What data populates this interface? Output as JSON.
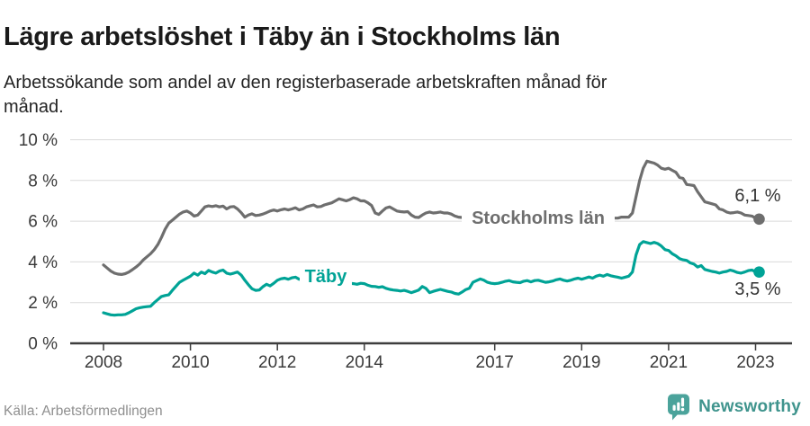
{
  "header": {
    "title": "Lägre arbetslöshet i Täby än i Stockholms län",
    "subtitle": "Arbetssökande som andel av den registerbaserade arbetskraften månad för månad."
  },
  "footer": {
    "source": "Källa: Arbetsförmedlingen",
    "brand": "Newsworthy",
    "brand_text_color": "#3F948D",
    "brand_icon": "newsworthy-speech-bubble-bar-chart-icon",
    "brand_icon_color": "#4BA39B"
  },
  "chart_data": {
    "type": "line",
    "title": "Lägre arbetslöshet i Täby än i Stockholms län",
    "subtitle": "Arbetssökande som andel av den registerbaserade arbetskraften månad för månad.",
    "x_unit": "decimal year, monthly points",
    "x_start": 2008.0,
    "points_per_year": 12,
    "xlim": [
      2007.9,
      2023.9
    ],
    "ylim": [
      0,
      10
    ],
    "grid": "horizontal",
    "legend_position": "inline-on-line",
    "axis_text_color": "#3a3a3a",
    "gridline_color": "#dadada",
    "axis_line_color": "#3d3d3d",
    "y_ticks": [
      {
        "value": 0,
        "label": "0 %"
      },
      {
        "value": 2,
        "label": "2 %"
      },
      {
        "value": 4,
        "label": "4 %"
      },
      {
        "value": 6,
        "label": "6 %"
      },
      {
        "value": 8,
        "label": "8 %"
      },
      {
        "value": 10,
        "label": "10 %"
      }
    ],
    "x_ticks": [
      {
        "value": 2008,
        "label": "2008"
      },
      {
        "value": 2010,
        "label": "2010"
      },
      {
        "value": 2012,
        "label": "2012"
      },
      {
        "value": 2014,
        "label": "2014"
      },
      {
        "value": 2017,
        "label": "2017"
      },
      {
        "value": 2019,
        "label": "2019"
      },
      {
        "value": 2021,
        "label": "2021"
      },
      {
        "value": 2023,
        "label": "2023"
      }
    ],
    "series": [
      {
        "name": "Stockholms län",
        "color": "#6E6E6E",
        "end_label": "6,1 %",
        "end_value": 6.1,
        "values": [
          3.85,
          3.7,
          3.55,
          3.45,
          3.4,
          3.38,
          3.42,
          3.5,
          3.62,
          3.75,
          3.9,
          4.1,
          4.25,
          4.4,
          4.6,
          4.85,
          5.2,
          5.6,
          5.9,
          6.05,
          6.2,
          6.35,
          6.45,
          6.5,
          6.4,
          6.25,
          6.3,
          6.5,
          6.7,
          6.75,
          6.72,
          6.76,
          6.7,
          6.74,
          6.6,
          6.7,
          6.72,
          6.6,
          6.42,
          6.2,
          6.3,
          6.36,
          6.28,
          6.3,
          6.35,
          6.42,
          6.5,
          6.55,
          6.5,
          6.56,
          6.6,
          6.55,
          6.6,
          6.66,
          6.55,
          6.6,
          6.7,
          6.75,
          6.8,
          6.7,
          6.72,
          6.8,
          6.85,
          6.9,
          7.0,
          7.1,
          7.05,
          7.0,
          7.06,
          7.15,
          7.1,
          7.0,
          7.0,
          6.9,
          6.77,
          6.4,
          6.33,
          6.5,
          6.65,
          6.7,
          6.6,
          6.5,
          6.47,
          6.45,
          6.47,
          6.3,
          6.2,
          6.18,
          6.3,
          6.4,
          6.45,
          6.4,
          6.42,
          6.45,
          6.4,
          6.4,
          6.35,
          6.25,
          6.2,
          6.18,
          6.1,
          6.1,
          6.05,
          6.05,
          6.1,
          6.1,
          6.1,
          6.15,
          6.15,
          6.1,
          6.05,
          6.0,
          6.0,
          6.05,
          6.05,
          6.0,
          6.0,
          6.05,
          6.1,
          6.1,
          6.1,
          6.05,
          6.0,
          5.95,
          5.95,
          6.0,
          6.0,
          6.0,
          5.95,
          6.0,
          6.0,
          6.05,
          6.05,
          6.0,
          6.0,
          6.0,
          6.05,
          6.1,
          6.1,
          6.05,
          6.1,
          6.15,
          6.15,
          6.2,
          6.2,
          6.2,
          6.4,
          7.2,
          8.0,
          8.6,
          8.95,
          8.9,
          8.85,
          8.75,
          8.6,
          8.55,
          8.6,
          8.5,
          8.4,
          8.15,
          8.1,
          7.8,
          7.78,
          7.75,
          7.45,
          7.2,
          6.95,
          6.9,
          6.85,
          6.8,
          6.6,
          6.55,
          6.45,
          6.4,
          6.42,
          6.45,
          6.4,
          6.3,
          6.28,
          6.25,
          6.15,
          6.1
        ]
      },
      {
        "name": "Täby",
        "color": "#00A396",
        "end_label": "3,5 %",
        "end_value": 3.5,
        "values": [
          1.5,
          1.45,
          1.4,
          1.38,
          1.4,
          1.4,
          1.42,
          1.5,
          1.6,
          1.7,
          1.75,
          1.78,
          1.8,
          1.82,
          2.0,
          2.15,
          2.3,
          2.35,
          2.38,
          2.6,
          2.8,
          3.0,
          3.1,
          3.2,
          3.3,
          3.45,
          3.35,
          3.5,
          3.42,
          3.58,
          3.5,
          3.45,
          3.55,
          3.6,
          3.45,
          3.4,
          3.45,
          3.5,
          3.35,
          3.1,
          2.88,
          2.68,
          2.6,
          2.62,
          2.78,
          2.9,
          2.82,
          2.95,
          3.1,
          3.17,
          3.2,
          3.15,
          3.22,
          3.25,
          3.15,
          3.12,
          3.18,
          3.2,
          3.22,
          3.18,
          3.2,
          3.22,
          3.12,
          3.18,
          3.1,
          3.12,
          3.08,
          3.0,
          2.95,
          2.93,
          2.9,
          2.95,
          2.93,
          2.85,
          2.8,
          2.79,
          2.75,
          2.78,
          2.7,
          2.65,
          2.62,
          2.6,
          2.57,
          2.6,
          2.55,
          2.49,
          2.55,
          2.62,
          2.79,
          2.7,
          2.49,
          2.55,
          2.6,
          2.65,
          2.6,
          2.55,
          2.52,
          2.45,
          2.42,
          2.52,
          2.64,
          2.7,
          3.0,
          3.08,
          3.16,
          3.1,
          3.0,
          2.95,
          2.93,
          2.95,
          3.0,
          3.05,
          3.08,
          3.02,
          3.0,
          2.98,
          3.05,
          3.08,
          3.02,
          3.08,
          3.1,
          3.05,
          3.0,
          3.02,
          3.06,
          3.12,
          3.16,
          3.1,
          3.06,
          3.1,
          3.16,
          3.2,
          3.15,
          3.2,
          3.26,
          3.2,
          3.3,
          3.35,
          3.3,
          3.38,
          3.32,
          3.28,
          3.25,
          3.2,
          3.25,
          3.3,
          3.5,
          4.34,
          4.85,
          5.0,
          4.95,
          4.9,
          4.96,
          4.9,
          4.78,
          4.6,
          4.56,
          4.4,
          4.3,
          4.16,
          4.1,
          4.07,
          3.95,
          3.89,
          3.75,
          3.82,
          3.63,
          3.58,
          3.53,
          3.5,
          3.45,
          3.5,
          3.53,
          3.6,
          3.55,
          3.48,
          3.45,
          3.5,
          3.57,
          3.6,
          3.52,
          3.5
        ]
      }
    ]
  }
}
